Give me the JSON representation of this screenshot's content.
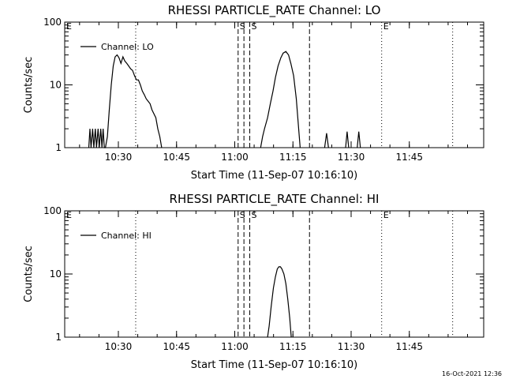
{
  "footer": {
    "timestamp": "16-Oct-2021 12:36"
  },
  "chart_data": [
    {
      "type": "line",
      "title": "RHESSI PARTICLE_RATE Channel: LO",
      "xlabel": "Start Time (11-Sep-07 10:16:10)",
      "ylabel": "Counts/sec",
      "x_unit": "minutes after 10:16:10",
      "xlim": [
        0,
        108
      ],
      "ylim": [
        1,
        100
      ],
      "yscale": "log",
      "x_ticks": [
        {
          "value": 13.83,
          "label": "10:30"
        },
        {
          "value": 28.83,
          "label": "10:45"
        },
        {
          "value": 43.83,
          "label": "11:00"
        },
        {
          "value": 58.83,
          "label": "11:15"
        },
        {
          "value": 73.83,
          "label": "11:30"
        },
        {
          "value": 88.83,
          "label": "11:45"
        }
      ],
      "y_ticks": [
        {
          "value": 1,
          "label": "1"
        },
        {
          "value": 10,
          "label": "10"
        },
        {
          "value": 100,
          "label": "100"
        }
      ],
      "legend": {
        "position": "top-left",
        "entries": [
          "Channel: LO"
        ]
      },
      "markers": [
        {
          "x": 0,
          "style": "none",
          "label": "E"
        },
        {
          "x": 18.3,
          "style": "dotted",
          "label": ""
        },
        {
          "x": 44.7,
          "style": "dashed",
          "label": "S"
        },
        {
          "x": 46.2,
          "style": "dashed",
          "label": ""
        },
        {
          "x": 47.7,
          "style": "dashed",
          "label": "S"
        },
        {
          "x": 63.1,
          "style": "dashed",
          "label": ""
        },
        {
          "x": 81.7,
          "style": "dotted",
          "label": "E"
        },
        {
          "x": 100.0,
          "style": "dotted",
          "label": ""
        }
      ],
      "series": [
        {
          "name": "Channel: LO",
          "points": [
            [
              6.2,
              1
            ],
            [
              6.5,
              2
            ],
            [
              6.8,
              1
            ],
            [
              7.2,
              2
            ],
            [
              7.5,
              1
            ],
            [
              7.9,
              2
            ],
            [
              8.2,
              1
            ],
            [
              8.6,
              2
            ],
            [
              8.9,
              1
            ],
            [
              9.3,
              2
            ],
            [
              9.6,
              1
            ],
            [
              9.9,
              2
            ],
            [
              10.2,
              1
            ],
            [
              10.5,
              1
            ],
            [
              11,
              1.5
            ],
            [
              11.5,
              4
            ],
            [
              12,
              10
            ],
            [
              12.5,
              20
            ],
            [
              13,
              28
            ],
            [
              13.5,
              30
            ],
            [
              14,
              27
            ],
            [
              14.5,
              22
            ],
            [
              15,
              28
            ],
            [
              15.5,
              24
            ],
            [
              16,
              22
            ],
            [
              16.5,
              20
            ],
            [
              17,
              18
            ],
            [
              17.5,
              17
            ],
            [
              18,
              14
            ],
            [
              18.5,
              12
            ],
            [
              19,
              12
            ],
            [
              19.5,
              10
            ],
            [
              20,
              8
            ],
            [
              20.5,
              7
            ],
            [
              21,
              6
            ],
            [
              22,
              5
            ],
            [
              22.5,
              4
            ],
            [
              23.5,
              3
            ],
            [
              24,
              2
            ],
            [
              24.5,
              1.5
            ],
            [
              25,
              1
            ],
            [
              50.5,
              1
            ],
            [
              51,
              1.5
            ],
            [
              51.5,
              2
            ],
            [
              52.3,
              3
            ],
            [
              53,
              5
            ],
            [
              53.7,
              8
            ],
            [
              54.3,
              13
            ],
            [
              55,
              20
            ],
            [
              55.7,
              27
            ],
            [
              56.3,
              32
            ],
            [
              57,
              34
            ],
            [
              57.7,
              30
            ],
            [
              58.3,
              22
            ],
            [
              59,
              14
            ],
            [
              59.7,
              6
            ],
            [
              60.3,
              2
            ],
            [
              60.7,
              1
            ],
            [
              67,
              1
            ],
            [
              67.5,
              1.7
            ],
            [
              68,
              1
            ],
            [
              72.4,
              1
            ],
            [
              72.8,
              1.8
            ],
            [
              73.2,
              1
            ],
            [
              75.4,
              1
            ],
            [
              75.8,
              1.8
            ],
            [
              76.2,
              1
            ]
          ]
        }
      ]
    },
    {
      "type": "line",
      "title": "RHESSI PARTICLE_RATE Channel: HI",
      "xlabel": "Start Time (11-Sep-07 10:16:10)",
      "ylabel": "Counts/sec",
      "x_unit": "minutes after 10:16:10",
      "xlim": [
        0,
        108
      ],
      "ylim": [
        1,
        100
      ],
      "yscale": "log",
      "x_ticks": [
        {
          "value": 13.83,
          "label": "10:30"
        },
        {
          "value": 28.83,
          "label": "10:45"
        },
        {
          "value": 43.83,
          "label": "11:00"
        },
        {
          "value": 58.83,
          "label": "11:15"
        },
        {
          "value": 73.83,
          "label": "11:30"
        },
        {
          "value": 88.83,
          "label": "11:45"
        }
      ],
      "y_ticks": [
        {
          "value": 1,
          "label": "1"
        },
        {
          "value": 10,
          "label": "10"
        },
        {
          "value": 100,
          "label": "100"
        }
      ],
      "legend": {
        "position": "top-left",
        "entries": [
          "Channel: HI"
        ]
      },
      "markers": [
        {
          "x": 0,
          "style": "none",
          "label": "E"
        },
        {
          "x": 18.3,
          "style": "dotted",
          "label": ""
        },
        {
          "x": 44.7,
          "style": "dashed",
          "label": "S"
        },
        {
          "x": 46.2,
          "style": "dashed",
          "label": ""
        },
        {
          "x": 47.7,
          "style": "dashed",
          "label": "S"
        },
        {
          "x": 63.1,
          "style": "dashed",
          "label": ""
        },
        {
          "x": 81.7,
          "style": "dotted",
          "label": "E"
        },
        {
          "x": 100.0,
          "style": "dotted",
          "label": ""
        }
      ],
      "series": [
        {
          "name": "Channel: HI",
          "points": [
            [
              52.3,
              1
            ],
            [
              52.7,
              1.5
            ],
            [
              53.2,
              3
            ],
            [
              53.8,
              6
            ],
            [
              54.3,
              9
            ],
            [
              54.8,
              12
            ],
            [
              55.2,
              13
            ],
            [
              55.6,
              13
            ],
            [
              56,
              12
            ],
            [
              56.5,
              10
            ],
            [
              57,
              7
            ],
            [
              57.5,
              4
            ],
            [
              58,
              2
            ],
            [
              58.4,
              1
            ]
          ]
        }
      ]
    }
  ]
}
